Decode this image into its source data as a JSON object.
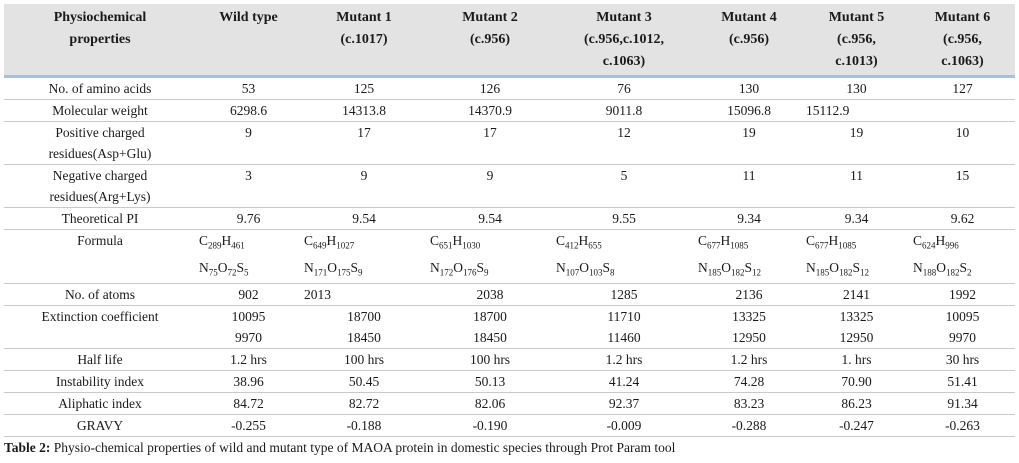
{
  "table": {
    "headers": [
      [
        "Physiochemical",
        "properties"
      ],
      [
        "Wild type"
      ],
      [
        "Mutant 1",
        "(c.1017)"
      ],
      [
        "Mutant 2",
        "(c.956)"
      ],
      [
        "Mutant 3",
        "(c.956,c.1012,",
        "c.1063)"
      ],
      [
        "Mutant 4",
        "(c.956)"
      ],
      [
        "Mutant 5",
        "(c.956,",
        "c.1013)"
      ],
      [
        "Mutant 6",
        "(c.956,",
        "c.1063)"
      ]
    ],
    "rows": [
      {
        "property": [
          "No. of amino acids"
        ],
        "values": [
          [
            "53"
          ],
          [
            "125"
          ],
          [
            "126"
          ],
          [
            "76"
          ],
          [
            "130"
          ],
          [
            "130"
          ],
          [
            "127"
          ]
        ]
      },
      {
        "property": [
          "Molecular weight"
        ],
        "values": [
          [
            "6298.6"
          ],
          [
            "14313.8"
          ],
          [
            "14370.9"
          ],
          [
            "9011.8"
          ],
          [
            "15096.8"
          ],
          [
            "15112.9"
          ],
          [
            ""
          ]
        ]
      },
      {
        "property": [
          "Positive charged",
          "residues(Asp+Glu)"
        ],
        "values": [
          [
            "9"
          ],
          [
            "17"
          ],
          [
            "17"
          ],
          [
            "12"
          ],
          [
            "19"
          ],
          [
            "19"
          ],
          [
            "10"
          ]
        ]
      },
      {
        "property": [
          "Negative charged",
          "residues(Arg+Lys)"
        ],
        "values": [
          [
            "3"
          ],
          [
            "9"
          ],
          [
            "9"
          ],
          [
            "5"
          ],
          [
            "11"
          ],
          [
            "11"
          ],
          [
            "15"
          ]
        ]
      },
      {
        "property": [
          "Theoretical PI"
        ],
        "values": [
          [
            "9.76"
          ],
          [
            "9.54"
          ],
          [
            "9.54"
          ],
          [
            "9.55"
          ],
          [
            "9.34"
          ],
          [
            "9.34"
          ],
          [
            "9.62"
          ]
        ]
      },
      {
        "property": [
          "Formula"
        ],
        "values": [
          [
            "C289H461",
            "N75O72S5"
          ],
          [
            "C649H1027",
            "N171O175S9"
          ],
          [
            "C651H1030",
            "N172O176S9"
          ],
          [
            "C412H655",
            "N107O103S8"
          ],
          [
            "C677H1085",
            "N185O182S12"
          ],
          [
            "C677H1085",
            "N185O182S12"
          ],
          [
            "C624H996",
            "N188O182S2"
          ]
        ]
      },
      {
        "property": [
          "No. of atoms"
        ],
        "values": [
          [
            "902"
          ],
          [
            "2013"
          ],
          [
            "2038"
          ],
          [
            "1285"
          ],
          [
            "2136"
          ],
          [
            "2141"
          ],
          [
            "1992"
          ]
        ]
      },
      {
        "property": [
          "Extinction coefficient"
        ],
        "values": [
          [
            "10095",
            "9970"
          ],
          [
            "18700",
            "18450"
          ],
          [
            "18700",
            "18450"
          ],
          [
            "11710",
            "11460"
          ],
          [
            "13325",
            "12950"
          ],
          [
            "13325",
            "12950"
          ],
          [
            "10095",
            "9970"
          ]
        ]
      },
      {
        "property": [
          "Half life"
        ],
        "values": [
          [
            "1.2 hrs"
          ],
          [
            "100 hrs"
          ],
          [
            "100 hrs"
          ],
          [
            "1.2 hrs"
          ],
          [
            "1.2 hrs"
          ],
          [
            "1. hrs"
          ],
          [
            "30 hrs"
          ]
        ]
      },
      {
        "property": [
          "Instability index"
        ],
        "values": [
          [
            "38.96"
          ],
          [
            "50.45"
          ],
          [
            "50.13"
          ],
          [
            "41.24"
          ],
          [
            "74.28"
          ],
          [
            "70.90"
          ],
          [
            "51.41"
          ]
        ]
      },
      {
        "property": [
          "Aliphatic index"
        ],
        "values": [
          [
            "84.72"
          ],
          [
            "82.72"
          ],
          [
            "82.06"
          ],
          [
            "92.37"
          ],
          [
            "83.23"
          ],
          [
            "86.23"
          ],
          [
            "91.34"
          ]
        ]
      },
      {
        "property": [
          "GRAVY"
        ],
        "values": [
          [
            "-0.255"
          ],
          [
            "-0.188"
          ],
          [
            "-0.190"
          ],
          [
            "-0.009"
          ],
          [
            "-0.288"
          ],
          [
            "-0.247"
          ],
          [
            "-0.263"
          ]
        ]
      }
    ]
  },
  "caption": {
    "label": "Table 2:",
    "text": " Physio-chemical properties of wild and mutant type of MAOA protein in domestic species through Prot Param tool"
  }
}
